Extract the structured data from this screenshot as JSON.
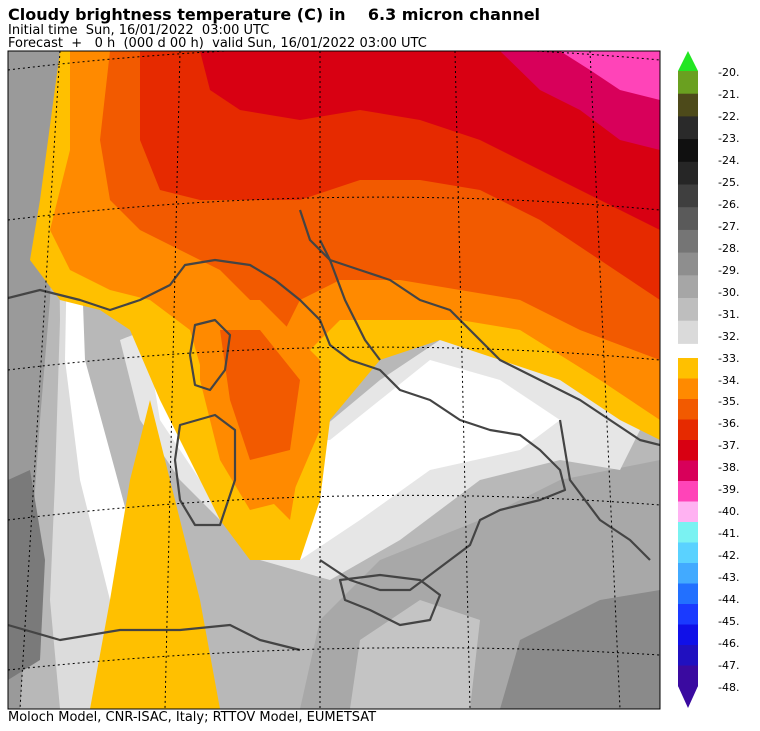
{
  "header": {
    "title": "Cloudy brightness temperature (C) in    6.3 micron channel",
    "initial_time": "Initial time  Sun, 16/01/2022  03:00 UTC",
    "forecast": "Forecast  +   0 h  (000 d 00 h)  valid Sun, 16/01/2022 03:00 UTC"
  },
  "footer": {
    "credit": "Moloch Model, CNR-ISAC, Italy; RTTOV Model, EUMETSAT"
  },
  "colorbar": {
    "labels": [
      "-20.",
      "-21.",
      "-22.",
      "-23.",
      "-24.",
      "-25.",
      "-26.",
      "-27.",
      "-28.",
      "-29.",
      "-30.",
      "-31.",
      "-32.",
      "-33.",
      "-34.",
      "-35.",
      "-36.",
      "-37.",
      "-38.",
      "-39.",
      "-40.",
      "-41.",
      "-42.",
      "-43.",
      "-44.",
      "-45.",
      "-46.",
      "-47.",
      "-48."
    ],
    "upper_colors": [
      "#6aa020",
      "#4d4a1a",
      "#2a2a2a",
      "#101010",
      "#262626",
      "#3f3f3f",
      "#5a5a5a",
      "#757575",
      "#8e8e8e",
      "#a6a6a6",
      "#bebebe",
      "#dadada"
    ],
    "lower_colors": [
      "#ffc000",
      "#ff8a00",
      "#f25a00",
      "#e62a00",
      "#d80012",
      "#d8005a",
      "#ff44b8",
      "#ffb2f2",
      "#7af2f2",
      "#5ad2ff",
      "#42aaff",
      "#2270ff",
      "#1a3aff",
      "#1010e8",
      "#2010c0",
      "#3a0aa0"
    ],
    "top_arrow_color": "#22e622",
    "bottom_arrow_color": "#3a0aa0"
  },
  "map": {
    "background_color": "#ffffff",
    "coastline_color": "#444444",
    "grid_style": "dotted"
  }
}
